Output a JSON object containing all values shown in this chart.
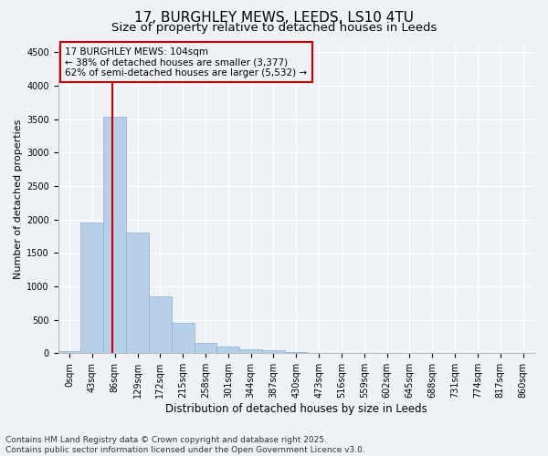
{
  "title_line1": "17, BURGHLEY MEWS, LEEDS, LS10 4TU",
  "title_line2": "Size of property relative to detached houses in Leeds",
  "xlabel": "Distribution of detached houses by size in Leeds",
  "ylabel": "Number of detached properties",
  "categories": [
    "0sqm",
    "43sqm",
    "86sqm",
    "129sqm",
    "172sqm",
    "215sqm",
    "258sqm",
    "301sqm",
    "344sqm",
    "387sqm",
    "430sqm",
    "473sqm",
    "516sqm",
    "559sqm",
    "602sqm",
    "645sqm",
    "688sqm",
    "731sqm",
    "774sqm",
    "817sqm",
    "860sqm"
  ],
  "values": [
    30,
    1950,
    3530,
    1810,
    855,
    460,
    155,
    100,
    65,
    50,
    20,
    5,
    2,
    1,
    0,
    0,
    0,
    0,
    0,
    0,
    0
  ],
  "bar_color": "#b8cfe8",
  "bar_edge_color": "#8aafd0",
  "vline_bar_index": 2,
  "vline_color": "#cc0000",
  "ylim": [
    0,
    4600
  ],
  "yticks": [
    0,
    500,
    1000,
    1500,
    2000,
    2500,
    3000,
    3500,
    4000,
    4500
  ],
  "annotation_text": "17 BURGHLEY MEWS: 104sqm\n← 38% of detached houses are smaller (3,377)\n62% of semi-detached houses are larger (5,532) →",
  "annotation_box_color": "#cc0000",
  "footer_line1": "Contains HM Land Registry data © Crown copyright and database right 2025.",
  "footer_line2": "Contains public sector information licensed under the Open Government Licence v3.0.",
  "background_color": "#eef2f7",
  "grid_color": "#ffffff",
  "title_fontsize": 11,
  "subtitle_fontsize": 9.5,
  "ylabel_fontsize": 8,
  "xlabel_fontsize": 8.5,
  "tick_fontsize": 7,
  "annotation_fontsize": 7.5,
  "footer_fontsize": 6.5
}
